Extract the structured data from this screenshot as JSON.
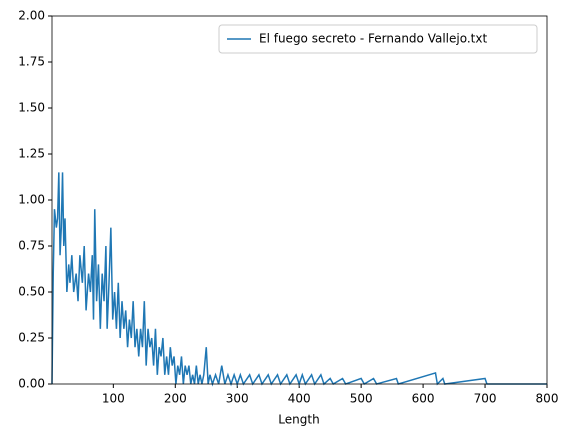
{
  "chart_data": {
    "type": "line",
    "xlabel": "Length",
    "x": [
      1,
      3,
      5,
      8,
      10,
      12,
      14,
      16,
      18,
      20,
      22,
      25,
      28,
      30,
      33,
      36,
      40,
      43,
      46,
      50,
      53,
      56,
      60,
      63,
      66,
      68,
      70,
      73,
      76,
      79,
      82,
      85,
      88,
      90,
      93,
      96,
      99,
      102,
      105,
      108,
      111,
      114,
      117,
      120,
      123,
      126,
      129,
      132,
      135,
      138,
      141,
      144,
      147,
      150,
      153,
      156,
      159,
      162,
      165,
      168,
      171,
      174,
      177,
      180,
      183,
      186,
      189,
      192,
      195,
      198,
      201,
      204,
      207,
      210,
      213,
      216,
      219,
      222,
      225,
      228,
      231,
      234,
      237,
      240,
      243,
      246,
      250,
      253,
      256,
      260,
      265,
      270,
      275,
      280,
      285,
      290,
      295,
      300,
      305,
      310,
      320,
      325,
      335,
      340,
      350,
      355,
      365,
      370,
      380,
      385,
      395,
      400,
      405,
      410,
      420,
      425,
      435,
      440,
      450,
      455,
      470,
      475,
      500,
      505,
      520,
      525,
      557,
      560,
      620,
      623,
      632,
      635,
      700,
      703,
      800
    ],
    "series": [
      {
        "name": "El fuego secreto - Fernando Vallejo.txt",
        "color": "#1f77b4",
        "values": [
          0,
          0.6,
          0.95,
          0.85,
          0.9,
          1.15,
          0.7,
          0.85,
          1.15,
          0.75,
          0.9,
          0.5,
          0.65,
          0.55,
          0.7,
          0.5,
          0.6,
          0.45,
          0.7,
          0.55,
          0.75,
          0.4,
          0.6,
          0.5,
          0.7,
          0.35,
          0.95,
          0.45,
          0.65,
          0.3,
          0.6,
          0.45,
          0.75,
          0.3,
          0.55,
          0.85,
          0.35,
          0.5,
          0.3,
          0.55,
          0.25,
          0.45,
          0.3,
          0.4,
          0.2,
          0.35,
          0.25,
          0.45,
          0.2,
          0.3,
          0.15,
          0.3,
          0.2,
          0.45,
          0.1,
          0.3,
          0.2,
          0.25,
          0.1,
          0.3,
          0.05,
          0.2,
          0.15,
          0.25,
          0.05,
          0.15,
          0.05,
          0.2,
          0.1,
          0.15,
          0,
          0.1,
          0.05,
          0.15,
          0,
          0.1,
          0.05,
          0.1,
          0,
          0.05,
          0,
          0.1,
          0,
          0.05,
          0,
          0.05,
          0.2,
          0,
          0.05,
          0,
          0.05,
          0,
          0.1,
          0,
          0.05,
          0,
          0.05,
          0,
          0.05,
          0,
          0.05,
          0,
          0.05,
          0,
          0.05,
          0,
          0.05,
          0,
          0.05,
          0,
          0.05,
          0,
          0.05,
          0,
          0.05,
          0,
          0.05,
          0,
          0.03,
          0,
          0.03,
          0,
          0.03,
          0,
          0.03,
          0,
          0.03,
          0,
          0.06,
          0,
          0.03,
          0,
          0.03,
          0,
          0
        ]
      }
    ],
    "xlim": [
      1,
      800
    ],
    "xticks": [
      100,
      200,
      300,
      400,
      500,
      600,
      700,
      800
    ],
    "ylim": [
      0,
      2
    ],
    "yticks": [
      {
        "value": 0,
        "label": "0.00"
      },
      {
        "value": 0.25,
        "label": "0.25"
      },
      {
        "value": 0.5,
        "label": "0.50"
      },
      {
        "value": 0.75,
        "label": "0.75"
      },
      {
        "value": 1,
        "label": "1.00"
      },
      {
        "value": 1.25,
        "label": "1.25"
      },
      {
        "value": 1.5,
        "label": "1.50"
      },
      {
        "value": 1.75,
        "label": "1.75"
      },
      {
        "value": 2,
        "label": "2.00"
      }
    ],
    "legend": "upper right"
  }
}
